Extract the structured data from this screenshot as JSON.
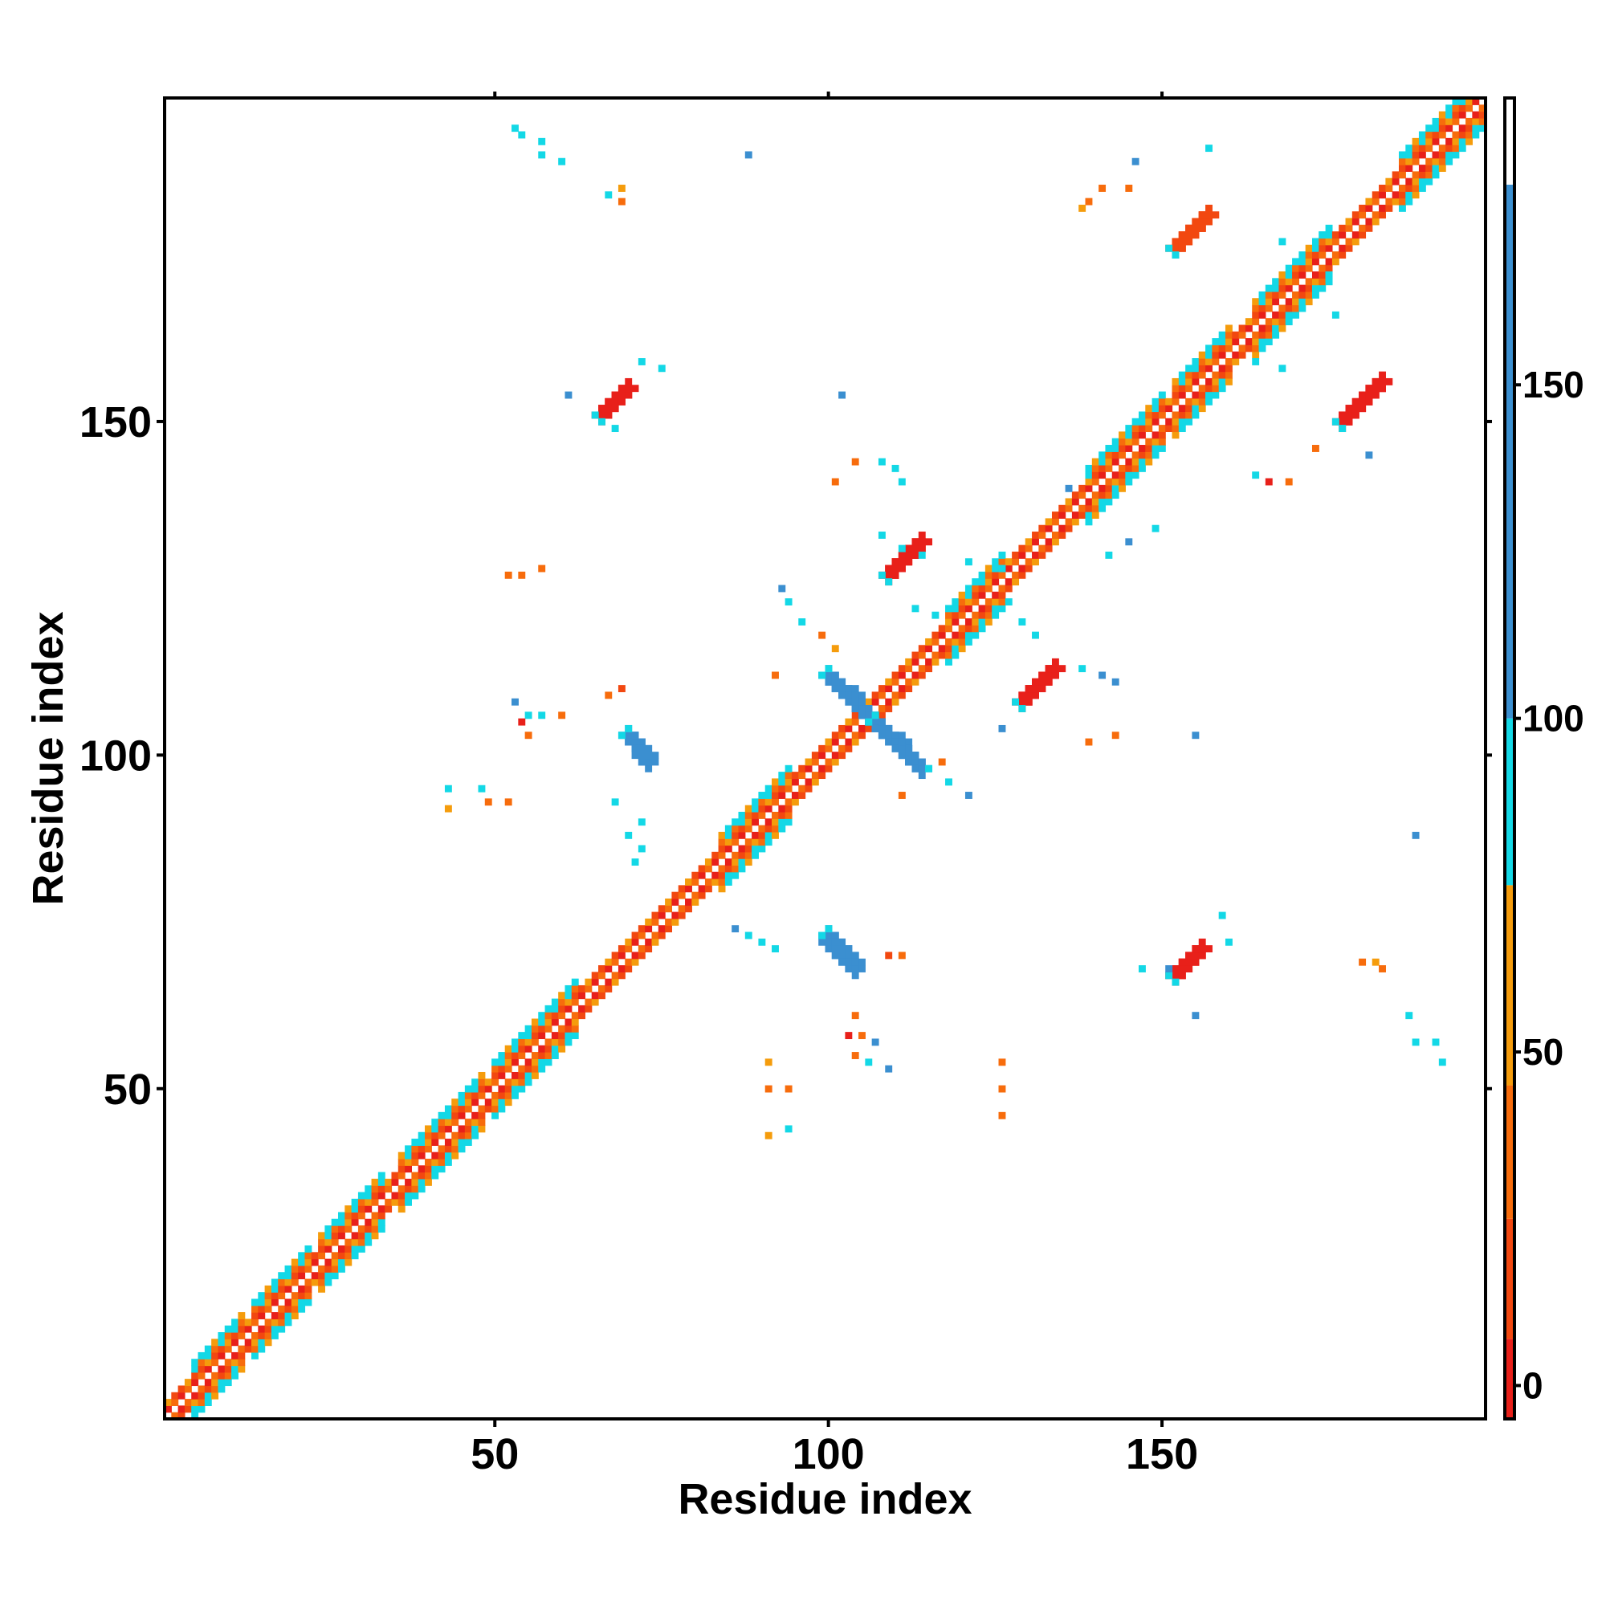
{
  "chart_data": {
    "type": "heatmap",
    "title": "",
    "xlabel": "Residue index",
    "ylabel": "Residue index",
    "xlim": [
      1,
      198
    ],
    "ylim": [
      1,
      198
    ],
    "x_ticks": [
      50,
      100,
      150
    ],
    "y_ticks": [
      50,
      100,
      150
    ],
    "grid": false,
    "legend": "colorbar right",
    "colorbar": {
      "ticks": [
        0,
        50,
        100,
        150
      ],
      "range": [
        -5,
        193
      ],
      "bands": [
        {
          "from": -5,
          "to": 7,
          "color": "#e8201a"
        },
        {
          "from": 7,
          "to": 25,
          "color": "#f24810"
        },
        {
          "from": 25,
          "to": 45,
          "color": "#f76c0c"
        },
        {
          "from": 45,
          "to": 75,
          "color": "#f59c0c"
        },
        {
          "from": 75,
          "to": 100,
          "color": "#13d8e6"
        },
        {
          "from": 100,
          "to": 180,
          "color": "#3b8fd0"
        },
        {
          "from": 180,
          "to": 193,
          "color": "#ffffff"
        }
      ]
    },
    "category_colors": {
      "red": "#e8201a",
      "redorange": "#f24810",
      "orange": "#f76c0c",
      "amber": "#f59c0c",
      "cyan": "#13d8e6",
      "blue": "#3b8fd0"
    },
    "diagonal_band": {
      "from": 1,
      "to": 198,
      "inner_halfwidth": 2,
      "outer_halfwidth": 4
    },
    "helix_segments": [
      [
        5,
        12
      ],
      [
        14,
        22
      ],
      [
        24,
        33
      ],
      [
        36,
        48
      ],
      [
        50,
        62
      ],
      [
        84,
        94
      ],
      [
        118,
        126
      ],
      [
        139,
        150
      ],
      [
        152,
        160
      ],
      [
        164,
        175
      ],
      [
        186,
        198
      ]
    ],
    "clusters": [
      {
        "x": [
          70,
          73
        ],
        "y": [
          103,
          99
        ],
        "len": 6,
        "w": 3,
        "color": "blue"
      },
      {
        "x": [
          100,
          107
        ],
        "y": [
          112,
          105
        ],
        "len": 12,
        "w": 3,
        "color": "blue"
      },
      {
        "x": [
          107,
          114
        ],
        "y": [
          105,
          98
        ],
        "len": 12,
        "w": 3,
        "color": "blue"
      },
      {
        "x": [
          100,
          104
        ],
        "y": [
          73,
          68
        ],
        "len": 9,
        "w": 3,
        "color": "blue"
      },
      {
        "x": [
          109,
          114
        ],
        "y": [
          127,
          132
        ],
        "len": 8,
        "w": 3,
        "color": "red"
      },
      {
        "x": [
          129,
          134
        ],
        "y": [
          108,
          113
        ],
        "len": 8,
        "w": 3,
        "color": "red"
      },
      {
        "x": [
          152,
          157
        ],
        "y": [
          176,
          181
        ],
        "len": 8,
        "w": 3,
        "color": "redorange"
      },
      {
        "x": [
          177,
          183
        ],
        "y": [
          150,
          156
        ],
        "len": 9,
        "w": 3,
        "color": "red"
      },
      {
        "x": [
          66,
          70
        ],
        "y": [
          151,
          155
        ],
        "len": 6,
        "w": 3,
        "color": "red"
      },
      {
        "x": [
          152,
          156
        ],
        "y": [
          67,
          71
        ],
        "len": 6,
        "w": 2,
        "color": "red"
      }
    ],
    "scatter_points": [
      {
        "x": 53,
        "y": 194,
        "c": "cyan"
      },
      {
        "x": 54,
        "y": 193,
        "c": "cyan"
      },
      {
        "x": 57,
        "y": 192,
        "c": "cyan"
      },
      {
        "x": 57,
        "y": 190,
        "c": "cyan"
      },
      {
        "x": 60,
        "y": 189,
        "c": "cyan"
      },
      {
        "x": 88,
        "y": 190,
        "c": "blue"
      },
      {
        "x": 67,
        "y": 184,
        "c": "cyan"
      },
      {
        "x": 69,
        "y": 185,
        "c": "amber"
      },
      {
        "x": 69,
        "y": 183,
        "c": "orange"
      },
      {
        "x": 72,
        "y": 159,
        "c": "cyan"
      },
      {
        "x": 75,
        "y": 158,
        "c": "cyan"
      },
      {
        "x": 61,
        "y": 154,
        "c": "blue"
      },
      {
        "x": 68,
        "y": 149,
        "c": "cyan"
      },
      {
        "x": 102,
        "y": 154,
        "c": "blue"
      },
      {
        "x": 104,
        "y": 144,
        "c": "orange"
      },
      {
        "x": 101,
        "y": 141,
        "c": "orange"
      },
      {
        "x": 108,
        "y": 144,
        "c": "cyan"
      },
      {
        "x": 110,
        "y": 143,
        "c": "cyan"
      },
      {
        "x": 111,
        "y": 141,
        "c": "cyan"
      },
      {
        "x": 52,
        "y": 127,
        "c": "orange"
      },
      {
        "x": 54,
        "y": 127,
        "c": "orange"
      },
      {
        "x": 57,
        "y": 128,
        "c": "orange"
      },
      {
        "x": 93,
        "y": 125,
        "c": "blue"
      },
      {
        "x": 94,
        "y": 123,
        "c": "cyan"
      },
      {
        "x": 96,
        "y": 120,
        "c": "cyan"
      },
      {
        "x": 99,
        "y": 118,
        "c": "orange"
      },
      {
        "x": 101,
        "y": 116,
        "c": "amber"
      },
      {
        "x": 92,
        "y": 112,
        "c": "orange"
      },
      {
        "x": 108,
        "y": 133,
        "c": "cyan"
      },
      {
        "x": 111,
        "y": 131,
        "c": "cyan"
      },
      {
        "x": 114,
        "y": 130,
        "c": "cyan"
      },
      {
        "x": 121,
        "y": 129,
        "c": "cyan"
      },
      {
        "x": 126,
        "y": 128,
        "c": "cyan"
      },
      {
        "x": 113,
        "y": 122,
        "c": "cyan"
      },
      {
        "x": 116,
        "y": 121,
        "c": "cyan"
      },
      {
        "x": 127,
        "y": 123,
        "c": "cyan"
      },
      {
        "x": 129,
        "y": 120,
        "c": "cyan"
      },
      {
        "x": 131,
        "y": 118,
        "c": "cyan"
      },
      {
        "x": 138,
        "y": 113,
        "c": "cyan"
      },
      {
        "x": 141,
        "y": 112,
        "c": "blue"
      },
      {
        "x": 143,
        "y": 111,
        "c": "blue"
      },
      {
        "x": 126,
        "y": 104,
        "c": "blue"
      },
      {
        "x": 139,
        "y": 102,
        "c": "orange"
      },
      {
        "x": 143,
        "y": 103,
        "c": "orange"
      },
      {
        "x": 155,
        "y": 103,
        "c": "blue"
      },
      {
        "x": 115,
        "y": 98,
        "c": "cyan"
      },
      {
        "x": 118,
        "y": 96,
        "c": "cyan"
      },
      {
        "x": 121,
        "y": 94,
        "c": "blue"
      },
      {
        "x": 117,
        "y": 99,
        "c": "orange"
      },
      {
        "x": 111,
        "y": 94,
        "c": "orange"
      },
      {
        "x": 53,
        "y": 108,
        "c": "blue"
      },
      {
        "x": 55,
        "y": 106,
        "c": "cyan"
      },
      {
        "x": 54,
        "y": 105,
        "c": "red"
      },
      {
        "x": 57,
        "y": 106,
        "c": "cyan"
      },
      {
        "x": 60,
        "y": 106,
        "c": "orange"
      },
      {
        "x": 67,
        "y": 109,
        "c": "orange"
      },
      {
        "x": 69,
        "y": 110,
        "c": "redorange"
      },
      {
        "x": 55,
        "y": 103,
        "c": "orange"
      },
      {
        "x": 43,
        "y": 95,
        "c": "cyan"
      },
      {
        "x": 48,
        "y": 95,
        "c": "cyan"
      },
      {
        "x": 49,
        "y": 93,
        "c": "orange"
      },
      {
        "x": 52,
        "y": 93,
        "c": "orange"
      },
      {
        "x": 43,
        "y": 92,
        "c": "amber"
      },
      {
        "x": 70,
        "y": 88,
        "c": "cyan"
      },
      {
        "x": 72,
        "y": 86,
        "c": "cyan"
      },
      {
        "x": 71,
        "y": 84,
        "c": "cyan"
      },
      {
        "x": 68,
        "y": 93,
        "c": "cyan"
      },
      {
        "x": 72,
        "y": 90,
        "c": "cyan"
      },
      {
        "x": 86,
        "y": 74,
        "c": "blue"
      },
      {
        "x": 88,
        "y": 73,
        "c": "cyan"
      },
      {
        "x": 90,
        "y": 72,
        "c": "cyan"
      },
      {
        "x": 92,
        "y": 71,
        "c": "cyan"
      },
      {
        "x": 109,
        "y": 70,
        "c": "redorange"
      },
      {
        "x": 111,
        "y": 70,
        "c": "orange"
      },
      {
        "x": 104,
        "y": 61,
        "c": "orange"
      },
      {
        "x": 103,
        "y": 58,
        "c": "red"
      },
      {
        "x": 105,
        "y": 58,
        "c": "orange"
      },
      {
        "x": 104,
        "y": 55,
        "c": "orange"
      },
      {
        "x": 107,
        "y": 57,
        "c": "blue"
      },
      {
        "x": 106,
        "y": 54,
        "c": "cyan"
      },
      {
        "x": 109,
        "y": 53,
        "c": "blue"
      },
      {
        "x": 91,
        "y": 54,
        "c": "amber"
      },
      {
        "x": 91,
        "y": 50,
        "c": "orange"
      },
      {
        "x": 94,
        "y": 50,
        "c": "orange"
      },
      {
        "x": 91,
        "y": 43,
        "c": "amber"
      },
      {
        "x": 94,
        "y": 44,
        "c": "cyan"
      },
      {
        "x": 126,
        "y": 54,
        "c": "orange"
      },
      {
        "x": 126,
        "y": 50,
        "c": "orange"
      },
      {
        "x": 126,
        "y": 46,
        "c": "orange"
      },
      {
        "x": 151,
        "y": 68,
        "c": "blue"
      },
      {
        "x": 155,
        "y": 61,
        "c": "blue"
      },
      {
        "x": 159,
        "y": 76,
        "c": "cyan"
      },
      {
        "x": 160,
        "y": 72,
        "c": "cyan"
      },
      {
        "x": 147,
        "y": 68,
        "c": "cyan"
      },
      {
        "x": 180,
        "y": 69,
        "c": "orange"
      },
      {
        "x": 182,
        "y": 69,
        "c": "amber"
      },
      {
        "x": 183,
        "y": 68,
        "c": "orange"
      },
      {
        "x": 187,
        "y": 61,
        "c": "cyan"
      },
      {
        "x": 188,
        "y": 57,
        "c": "cyan"
      },
      {
        "x": 191,
        "y": 57,
        "c": "cyan"
      },
      {
        "x": 192,
        "y": 54,
        "c": "cyan"
      },
      {
        "x": 188,
        "y": 88,
        "c": "blue"
      },
      {
        "x": 181,
        "y": 145,
        "c": "blue"
      },
      {
        "x": 173,
        "y": 146,
        "c": "orange"
      },
      {
        "x": 169,
        "y": 141,
        "c": "orange"
      },
      {
        "x": 166,
        "y": 141,
        "c": "red"
      },
      {
        "x": 164,
        "y": 142,
        "c": "cyan"
      },
      {
        "x": 141,
        "y": 185,
        "c": "orange"
      },
      {
        "x": 139,
        "y": 183,
        "c": "orange"
      },
      {
        "x": 138,
        "y": 182,
        "c": "amber"
      },
      {
        "x": 145,
        "y": 185,
        "c": "orange"
      },
      {
        "x": 146,
        "y": 189,
        "c": "blue"
      },
      {
        "x": 157,
        "y": 191,
        "c": "cyan"
      },
      {
        "x": 168,
        "y": 177,
        "c": "cyan"
      },
      {
        "x": 174,
        "y": 178,
        "c": "cyan"
      },
      {
        "x": 175,
        "y": 172,
        "c": "cyan"
      },
      {
        "x": 176,
        "y": 166,
        "c": "cyan"
      },
      {
        "x": 164,
        "y": 159,
        "c": "cyan"
      },
      {
        "x": 168,
        "y": 158,
        "c": "cyan"
      },
      {
        "x": 136,
        "y": 140,
        "c": "blue"
      },
      {
        "x": 145,
        "y": 132,
        "c": "blue"
      },
      {
        "x": 142,
        "y": 130,
        "c": "cyan"
      },
      {
        "x": 149,
        "y": 134,
        "c": "cyan"
      }
    ]
  }
}
